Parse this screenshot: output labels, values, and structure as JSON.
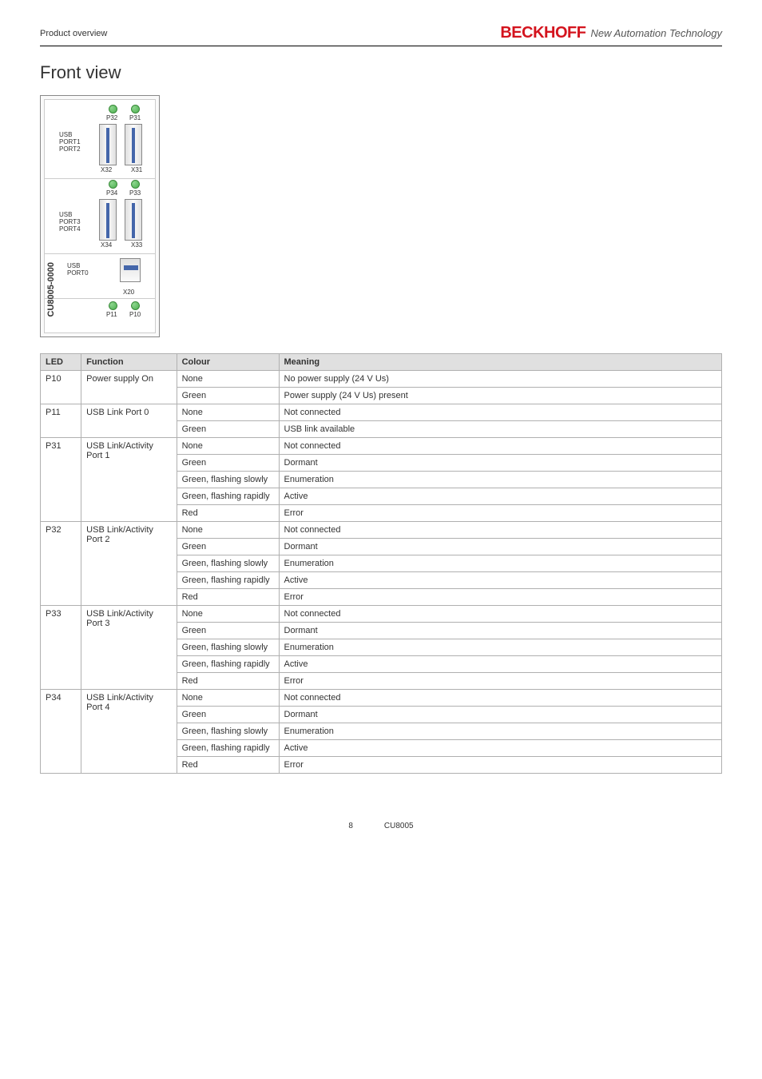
{
  "header": {
    "left": "Product overview",
    "logo": "BECKHOFF",
    "tagline": "New Automation Technology"
  },
  "section": {
    "title": "Front view"
  },
  "device": {
    "model": "CU8005-0000",
    "labels": {
      "usb_port12": "USB\nPORT1\nPORT2",
      "usb_port34": "USB\nPORT3\nPORT4",
      "usb_port0": "USB\nPORT0",
      "p31": "P31",
      "p32": "P32",
      "x31": "X31",
      "x32": "X32",
      "p33": "P33",
      "p34": "P34",
      "x33": "X33",
      "x34": "X34",
      "x20": "X20",
      "p10": "P10",
      "p11": "P11"
    }
  },
  "table": {
    "headers": [
      "LED",
      "Function",
      "Colour",
      "Meaning"
    ],
    "groups": [
      {
        "led": "P10",
        "function": "Power supply On",
        "rows": [
          {
            "colour": "None",
            "meaning": "No power supply (24 V Us)"
          },
          {
            "colour": "Green",
            "meaning": "Power supply (24 V Us) present"
          }
        ]
      },
      {
        "led": "P11",
        "function": "USB Link Port 0",
        "rows": [
          {
            "colour": "None",
            "meaning": "Not connected"
          },
          {
            "colour": "Green",
            "meaning": "USB link available"
          }
        ]
      },
      {
        "led": "P31",
        "function": "USB Link/Activity Port 1",
        "rows": [
          {
            "colour": "None",
            "meaning": "Not connected"
          },
          {
            "colour": "Green",
            "meaning": "Dormant"
          },
          {
            "colour": "Green, flashing slowly",
            "meaning": "Enumeration"
          },
          {
            "colour": "Green, flashing rapidly",
            "meaning": "Active"
          },
          {
            "colour": "Red",
            "meaning": "Error"
          }
        ]
      },
      {
        "led": "P32",
        "function": "USB Link/Activity Port 2",
        "rows": [
          {
            "colour": "None",
            "meaning": "Not connected"
          },
          {
            "colour": "Green",
            "meaning": "Dormant"
          },
          {
            "colour": "Green, flashing slowly",
            "meaning": "Enumeration"
          },
          {
            "colour": "Green, flashing rapidly",
            "meaning": "Active"
          },
          {
            "colour": "Red",
            "meaning": "Error"
          }
        ]
      },
      {
        "led": "P33",
        "function": "USB Link/Activity Port 3",
        "rows": [
          {
            "colour": "None",
            "meaning": "Not connected"
          },
          {
            "colour": "Green",
            "meaning": "Dormant"
          },
          {
            "colour": "Green, flashing slowly",
            "meaning": "Enumeration"
          },
          {
            "colour": "Green, flashing rapidly",
            "meaning": "Active"
          },
          {
            "colour": "Red",
            "meaning": "Error"
          }
        ]
      },
      {
        "led": "P34",
        "function": "USB Link/Activity Port 4",
        "rows": [
          {
            "colour": "None",
            "meaning": "Not connected"
          },
          {
            "colour": "Green",
            "meaning": "Dormant"
          },
          {
            "colour": "Green, flashing slowly",
            "meaning": "Enumeration"
          },
          {
            "colour": "Green, flashing rapidly",
            "meaning": "Active"
          },
          {
            "colour": "Red",
            "meaning": "Error"
          }
        ]
      }
    ]
  },
  "footer": {
    "page": "8",
    "model": "CU8005"
  }
}
